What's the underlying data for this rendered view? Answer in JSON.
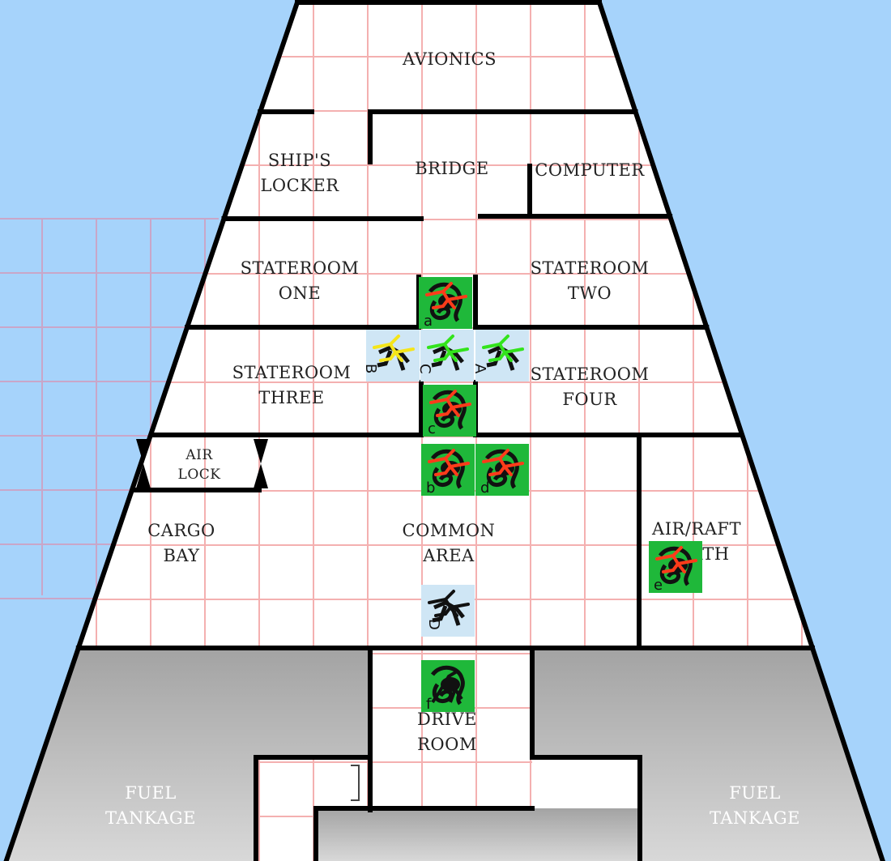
{
  "map": {
    "rooms": [
      {
        "id": "avionics",
        "lines": [
          "AVIONICS"
        ]
      },
      {
        "id": "ships-locker",
        "lines": [
          "SHIP'S",
          "LOCKER"
        ]
      },
      {
        "id": "bridge",
        "lines": [
          "BRIDGE"
        ]
      },
      {
        "id": "computer",
        "lines": [
          "COMPUTER"
        ]
      },
      {
        "id": "stateroom-one",
        "lines": [
          "STATEROOM",
          "ONE"
        ]
      },
      {
        "id": "stateroom-two",
        "lines": [
          "STATEROOM",
          "TWO"
        ]
      },
      {
        "id": "stateroom-three",
        "lines": [
          "STATEROOM",
          "THREE"
        ]
      },
      {
        "id": "stateroom-four",
        "lines": [
          "STATEROOM",
          "FOUR"
        ]
      },
      {
        "id": "air-lock",
        "lines": [
          "AIR",
          "LOCK"
        ]
      },
      {
        "id": "cargo-bay",
        "lines": [
          "CARGO",
          "BAY"
        ]
      },
      {
        "id": "common-area",
        "lines": [
          "COMMON",
          "AREA"
        ]
      },
      {
        "id": "air-raft-berth",
        "lines": [
          "AIR/RAFT",
          "BERTH"
        ]
      },
      {
        "id": "drive-room",
        "lines": [
          "DRIVE",
          "ROOM"
        ]
      },
      {
        "id": "fuel-tankage-left",
        "lines": [
          "FUEL",
          "TANKAGE"
        ]
      },
      {
        "id": "fuel-tankage-right",
        "lines": [
          "FUEL",
          "TANKAGE"
        ]
      }
    ],
    "tokens": [
      {
        "label": "a",
        "side": "enemy",
        "color": "#1fb83a",
        "figure": "red"
      },
      {
        "label": "B",
        "side": "player",
        "color": "#cfe6f5",
        "figure": "yellow"
      },
      {
        "label": "C",
        "side": "player",
        "color": "#cfe6f5",
        "figure": "green"
      },
      {
        "label": "A",
        "side": "player",
        "color": "#cfe6f5",
        "figure": "green"
      },
      {
        "label": "c",
        "side": "enemy",
        "color": "#1fb83a",
        "figure": "red"
      },
      {
        "label": "b",
        "side": "enemy",
        "color": "#1fb83a",
        "figure": "red"
      },
      {
        "label": "d",
        "side": "enemy",
        "color": "#1fb83a",
        "figure": "red"
      },
      {
        "label": "e",
        "side": "enemy",
        "color": "#1fb83a",
        "figure": "red"
      },
      {
        "label": "D",
        "side": "player",
        "color": "#cfe6f5",
        "figure": "black"
      },
      {
        "label": "f",
        "side": "enemy",
        "color": "#1fb83a",
        "figure": "black"
      }
    ],
    "colors": {
      "space": "#a6d3fb",
      "floor": "#ffffff",
      "grid": "#f4b0b0",
      "wall": "#000000",
      "fuel": "#b4b4b4",
      "enemy": "#1fb83a",
      "player": "#cfe6f5"
    }
  }
}
